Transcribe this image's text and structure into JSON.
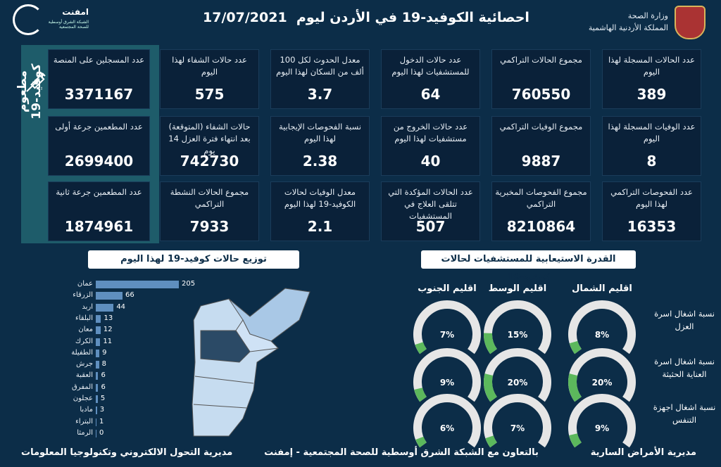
{
  "header": {
    "title": "احصائية الكوفيد-19 في الأردن ليوم",
    "date": "17/07/2021",
    "ministry_line1": "وزارة الصحة",
    "ministry_line2": "المملكة الأردنية الهاشمية",
    "partner_name": "امفنت",
    "partner_sub": "الشبكة الشرق أوسطية للصحة المجتمعية"
  },
  "cards": [
    {
      "label": "عدد الحالات المسجلة لهذا اليوم",
      "value": "389"
    },
    {
      "label": "مجموع الحالات التراكمي",
      "value": "760550"
    },
    {
      "label": "عدد حالات الدخول للمستشفيات لهذا اليوم",
      "value": "64"
    },
    {
      "label": "معدل الحدوث لكل 100 ألف من السكان لهذا اليوم",
      "value": "3.7"
    },
    {
      "label": "عدد حالات الشفاء لهذا اليوم",
      "value": "575"
    },
    {
      "label": "عدد الوفيات المسجلة لهذا اليوم",
      "value": "8"
    },
    {
      "label": "مجموع الوفيات التراكمي",
      "value": "9887"
    },
    {
      "label": "عدد حالات الخروج من مستشفيات لهذا اليوم",
      "value": "40"
    },
    {
      "label": "نسبة الفحوصات الإيجابية لهذا اليوم",
      "value": "2.38"
    },
    {
      "label": "حالات الشفاء (المتوقعة) بعد انتهاء فترة العزل 14 يوم",
      "value": "742730"
    },
    {
      "label": "عدد الفحوصات التراكمي لهذا اليوم",
      "value": "16353"
    },
    {
      "label": "مجموع الفحوصات المخبرية التراكمي",
      "value": "8210864"
    },
    {
      "label": "عدد الحالات المؤكدة التي تتلقى العلاج في المستشفيات",
      "value": "507"
    },
    {
      "label": "معدل الوفيات لحالات الكوفيد-19 لهذا اليوم",
      "value": "2.1"
    },
    {
      "label": "مجموع الحالات النشطة التراكمي",
      "value": "7933"
    }
  ],
  "vaccine": {
    "title": "مطعوم كوفيد-19",
    "icon": "syringe-icon",
    "cards": [
      {
        "label": "عدد المسجلين على المنصة",
        "value": "3371167"
      },
      {
        "label": "عدد المطعمين جرعة أولى",
        "value": "2699400"
      },
      {
        "label": "عدد المطعمين جرعة ثانية",
        "value": "1874961"
      }
    ]
  },
  "distribution": {
    "title": "توزيع حالات كوفيد-19 لهذا اليوم"
  },
  "chart_data": {
    "type": "bar",
    "orientation": "horizontal",
    "categories": [
      "عمان",
      "الزرقاء",
      "اربد",
      "البلقاء",
      "معان",
      "الكرك",
      "الطفيلة",
      "جرش",
      "العقبة",
      "المفرق",
      "عجلون",
      "مادبا",
      "البتراء",
      "الرمثا"
    ],
    "values": [
      205,
      66,
      44,
      13,
      12,
      11,
      9,
      8,
      6,
      6,
      5,
      3,
      1,
      0
    ],
    "color": "#5f8fbf"
  },
  "capacity": {
    "title": "القدرة الاستيعابية للمستشفيات لحالات كوفيد-19",
    "regions": [
      "اقليم الشمال",
      "اقليم الوسط",
      "اقليم الجنوب"
    ],
    "rows": [
      {
        "label": "نسبة اشغال اسرة العزل",
        "values": [
          "8%",
          "15%",
          "7%"
        ],
        "percent": [
          8,
          15,
          7
        ]
      },
      {
        "label": "نسبة اشغال اسرة العناية الحثيثة",
        "values": [
          "20%",
          "20%",
          "9%"
        ],
        "percent": [
          20,
          20,
          9
        ]
      },
      {
        "label": "نسبة اشغال اجهزة التنفس",
        "values": [
          "9%",
          "7%",
          "6%"
        ],
        "percent": [
          9,
          7,
          6
        ]
      }
    ],
    "gauge_color": "#5cb85c",
    "track_color": "#e6e6e6"
  },
  "footer": {
    "right": "مديرية الأمراض السارية",
    "center": "بالتعاون مع الشبكة الشرق أوسطية للصحة المجتمعية - إمفنت",
    "left": "مديرية التحول الالكتروني وتكنولوجيا المعلومات"
  }
}
